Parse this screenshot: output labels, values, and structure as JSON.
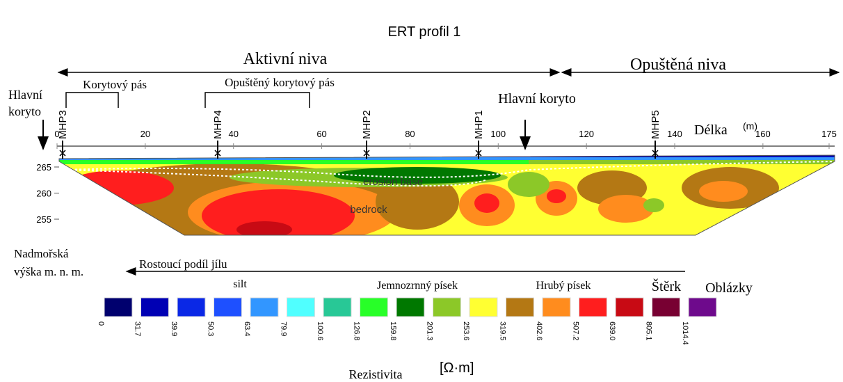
{
  "title": "ERT profil   1",
  "zones": {
    "active": "Aktivní niva",
    "abandoned": "Opuštěná niva"
  },
  "belts": {
    "channel_belt": "Korytový pás",
    "abandoned_belt": "Opuštěný korytový pás"
  },
  "main_channel_left": [
    "Hlavní",
    "koryto"
  ],
  "main_channel": "Hlavní koryto",
  "boreholes": [
    "MHP3",
    "MHP4",
    "MHP2",
    "MHP1",
    "MHP5"
  ],
  "x_axis": {
    "label": "Délka",
    "unit": "(m)",
    "ticks": [
      0,
      20,
      40,
      60,
      80,
      100,
      120,
      140,
      160,
      175
    ]
  },
  "y_axis": {
    "label": [
      "Nadmořská",
      "výška m. n. m."
    ],
    "ticks": [
      265,
      260,
      255
    ]
  },
  "annotations": {
    "erosion": "erosion base",
    "bedrock": "bedrock",
    "clay": "Rostoucí podíl jílu"
  },
  "legend": {
    "classes": [
      "silt",
      "Jemnozrnný písek",
      "Hrubý písek",
      "Štěrk",
      "Oblázky"
    ],
    "colors": [
      "#00006e",
      "#0000b4",
      "#0a28e6",
      "#1e50ff",
      "#3296ff",
      "#50ffff",
      "#28c896",
      "#28ff28",
      "#007800",
      "#8cc828",
      "#ffff32",
      "#b47814",
      "#ff8c1e",
      "#ff1e1e",
      "#c80a14",
      "#780032",
      "#6e0a8c"
    ],
    "values": [
      "0",
      "31.7",
      "39.9",
      "50.3",
      "63.4",
      "79.9",
      "100.6",
      "126.8",
      "159.8",
      "201.3",
      "253.6",
      "319.5",
      "402.6",
      "507.2",
      "639.0",
      "805.1",
      "1014.4"
    ],
    "title": "Rezistivita",
    "unit": "[Ω·m]"
  }
}
